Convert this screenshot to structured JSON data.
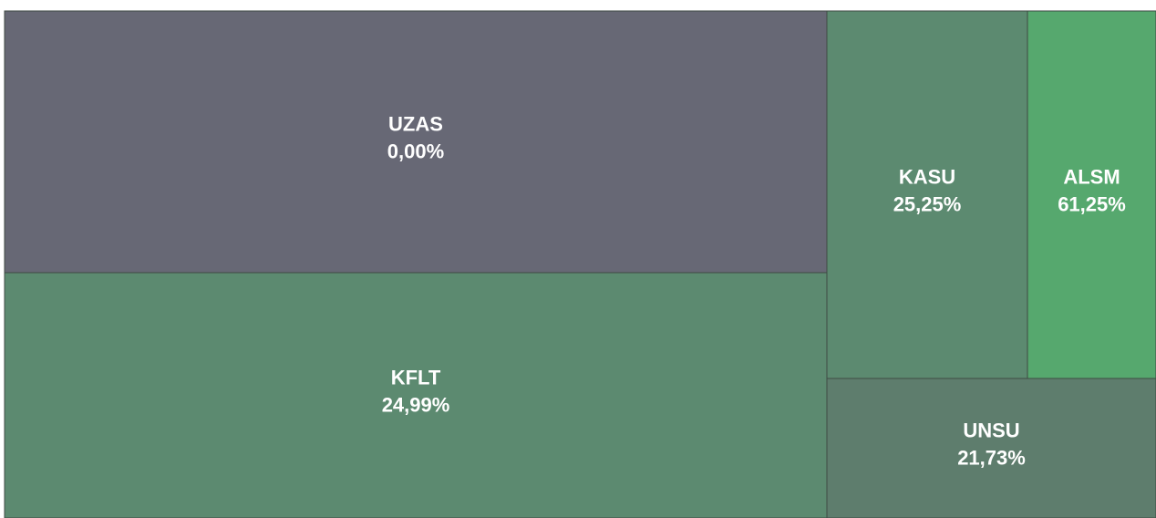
{
  "chart_data": {
    "type": "treemap",
    "categories": [
      "UZAS",
      "KFLT",
      "KASU",
      "ALSM",
      "UNSU"
    ],
    "values": [
      0,
      24.99,
      25.25,
      61.25,
      21.73
    ],
    "value_labels": [
      "0,00%",
      "24,99%",
      "25,25%",
      "61,25%",
      "21,73%"
    ],
    "colors": [
      "#676875",
      "#5c8a70",
      "#5c8a70",
      "#56a86e",
      "#5e7d6d"
    ]
  }
}
